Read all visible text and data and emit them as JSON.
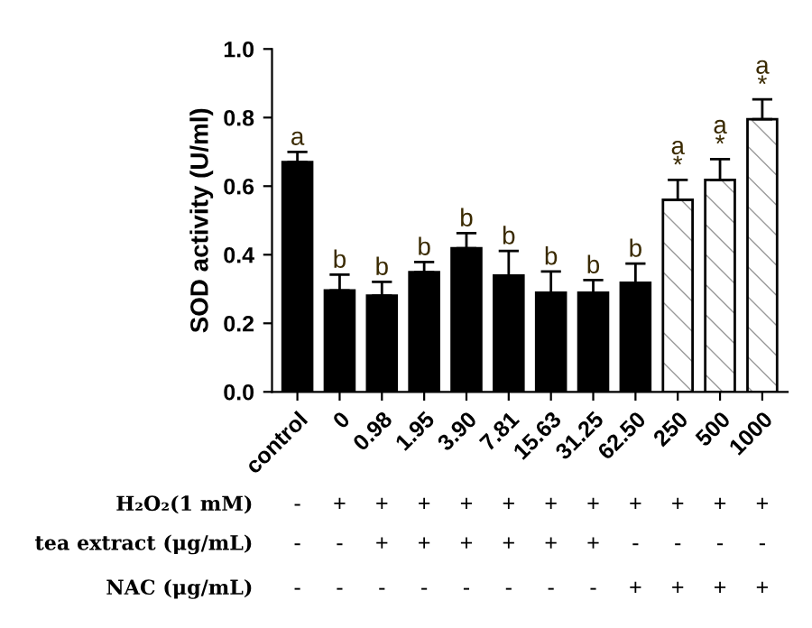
{
  "chart_data": {
    "type": "bar",
    "ylabel": "SOD activity (U/ml)",
    "categories": [
      "control",
      "0",
      "0.98",
      "1.95",
      "3.90",
      "7.81",
      "15.63",
      "31.25",
      "62.50",
      "250",
      "500",
      "1000"
    ],
    "values": [
      0.67,
      0.296,
      0.281,
      0.349,
      0.419,
      0.339,
      0.289,
      0.289,
      0.318,
      0.56,
      0.618,
      0.795
    ],
    "errors": [
      0.03,
      0.046,
      0.04,
      0.03,
      0.044,
      0.072,
      0.062,
      0.037,
      0.056,
      0.058,
      0.061,
      0.058
    ],
    "colors": [
      "#000000",
      "#000000",
      "#000000",
      "#000000",
      "#000000",
      "#000000",
      "#000000",
      "#000000",
      "#000000",
      "#ffffff",
      "#ffffff",
      "#ffffff"
    ],
    "value_labels": [
      "a",
      "b",
      "b",
      "b",
      "b",
      "b",
      "b",
      "b",
      "b",
      "a\n*",
      "a\n*",
      "a\n*"
    ],
    "ylim": [
      0,
      1.0
    ],
    "yticks": [
      {
        "value": 0,
        "label": "0.0"
      },
      {
        "value": 0.2,
        "label": "0.2"
      },
      {
        "value": 0.4,
        "label": "0.4"
      },
      {
        "value": 0.6,
        "label": "0.6"
      },
      {
        "value": 0.8,
        "label": "0.8"
      },
      {
        "value": 1.0,
        "label": "1.0"
      }
    ],
    "grid": false,
    "legend": false,
    "annotations": [
      "H₂O₂(1 mM)",
      "- + + + + + + + + + + +",
      "tea extract (μg/mL)",
      "- - + + + + + + - - - -",
      "NAC (μg/mL)",
      "- - - - - - - - + + + +"
    ]
  }
}
